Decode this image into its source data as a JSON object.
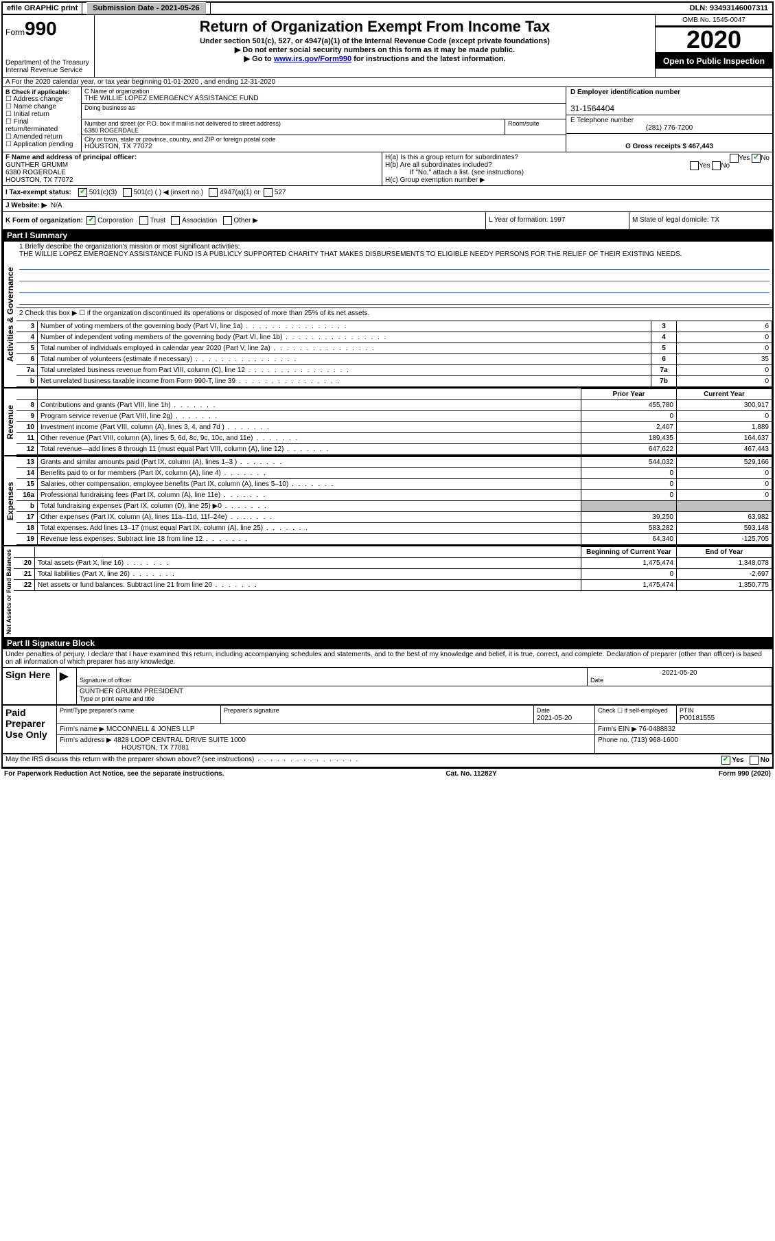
{
  "colors": {
    "black": "#000000",
    "white": "#ffffff",
    "grey": "#c0c0c0",
    "link": "#0000cc",
    "blueline": "#3060c0",
    "green": "#00aa00"
  },
  "top": {
    "efile": "efile GRAPHIC print",
    "sub_label": "Submission Date - 2021-05-26",
    "dln": "DLN: 93493146007311"
  },
  "header": {
    "form": "Form",
    "num": "990",
    "dept": "Department of the Treasury Internal Revenue Service",
    "title": "Return of Organization Exempt From Income Tax",
    "sub1": "Under section 501(c), 527, or 4947(a)(1) of the Internal Revenue Code (except private foundations)",
    "sub2": "▶ Do not enter social security numbers on this form as it may be made public.",
    "sub3_pre": "▶ Go to ",
    "sub3_link": "www.irs.gov/Form990",
    "sub3_post": " for instructions and the latest information.",
    "omb": "OMB No. 1545-0047",
    "year": "2020",
    "open": "Open to Public Inspection"
  },
  "rowA": "A For the 2020 calendar year, or tax year beginning 01-01-2020   , and ending 12-31-2020",
  "sectionB": {
    "b_label": "B Check if applicable:",
    "checks": [
      "☐ Address change",
      "☐ Name change",
      "☐ Initial return",
      "☐ Final return/terminated",
      "☐ Amended return",
      "☐ Application pending"
    ],
    "c_label": "C Name of organization",
    "org_name": "THE WILLIE LOPEZ EMERGENCY ASSISTANCE FUND",
    "dba_label": "Doing business as",
    "addr_label": "Number and street (or P.O. box if mail is not delivered to street address)",
    "room_label": "Room/suite",
    "addr": "6380 ROGERDALE",
    "city_label": "City or town, state or province, country, and ZIP or foreign postal code",
    "city": "HOUSTON, TX  77072",
    "d_label": "D Employer identification number",
    "ein": "31-1564404",
    "e_label": "E Telephone number",
    "phone": "(281) 776-7200",
    "g_label": "G Gross receipts $ 467,443"
  },
  "fg": {
    "f_label": "F  Name and address of principal officer:",
    "f_name": "GUNTHER GRUMM",
    "f_addr1": "6380 ROGERDALE",
    "f_addr2": "HOUSTON, TX  77072",
    "ha": "H(a)  Is this a group return for subordinates?",
    "hb": "H(b)  Are all subordinates included?",
    "hb_note": "If \"No,\" attach a list. (see instructions)",
    "hc": "H(c)  Group exemption number ▶",
    "yes": "Yes",
    "no": "No"
  },
  "tax": {
    "i_label": "I  Tax-exempt status:",
    "opt1": "501(c)(3)",
    "opt2": "501(c) (   ) ◀ (insert no.)",
    "opt3": "4947(a)(1) or",
    "opt4": "527"
  },
  "web": {
    "j_label": "J  Website: ▶",
    "val": "N/A"
  },
  "k": {
    "label": "K Form of organization:",
    "corp": "Corporation",
    "trust": "Trust",
    "assoc": "Association",
    "other": "Other ▶",
    "l": "L Year of formation: 1997",
    "m": "M State of legal domicile: TX"
  },
  "part1": {
    "header": "Part I      Summary",
    "q1": "1  Briefly describe the organization's mission or most significant activities:",
    "q1_text": "THE WILLIE LOPEZ EMERGENCY ASSISTANCE FUND IS A PUBLICLY SUPPORTED CHARITY THAT MAKES DISBURSEMENTS TO ELIGIBLE NEEDY PERSONS FOR THE RELIEF OF THEIR EXISTING NEEDS.",
    "q2": "2  Check this box ▶ ☐  if the organization discontinued its operations or disposed of more than 25% of its net assets.",
    "rows_ag": [
      {
        "n": "3",
        "lbl": "Number of voting members of the governing body (Part VI, line 1a)",
        "box": "3",
        "val": "6"
      },
      {
        "n": "4",
        "lbl": "Number of independent voting members of the governing body (Part VI, line 1b)",
        "box": "4",
        "val": "0"
      },
      {
        "n": "5",
        "lbl": "Total number of individuals employed in calendar year 2020 (Part V, line 2a)",
        "box": "5",
        "val": "0"
      },
      {
        "n": "6",
        "lbl": "Total number of volunteers (estimate if necessary)",
        "box": "6",
        "val": "35"
      },
      {
        "n": "7a",
        "lbl": "Total unrelated business revenue from Part VIII, column (C), line 12",
        "box": "7a",
        "val": "0"
      },
      {
        "n": "b",
        "lbl": "Net unrelated business taxable income from Form 990-T, line 39",
        "box": "7b",
        "val": "0"
      }
    ],
    "vtab_ag": "Activities & Governance",
    "prior": "Prior Year",
    "current": "Current Year",
    "vtab_rev": "Revenue",
    "rows_rev": [
      {
        "n": "8",
        "lbl": "Contributions and grants (Part VIII, line 1h)",
        "py": "455,780",
        "cy": "300,917"
      },
      {
        "n": "9",
        "lbl": "Program service revenue (Part VIII, line 2g)",
        "py": "0",
        "cy": "0"
      },
      {
        "n": "10",
        "lbl": "Investment income (Part VIII, column (A), lines 3, 4, and 7d )",
        "py": "2,407",
        "cy": "1,889"
      },
      {
        "n": "11",
        "lbl": "Other revenue (Part VIII, column (A), lines 5, 6d, 8c, 9c, 10c, and 11e)",
        "py": "189,435",
        "cy": "164,637"
      },
      {
        "n": "12",
        "lbl": "Total revenue—add lines 8 through 11 (must equal Part VIII, column (A), line 12)",
        "py": "647,622",
        "cy": "467,443"
      }
    ],
    "vtab_exp": "Expenses",
    "rows_exp": [
      {
        "n": "13",
        "lbl": "Grants and similar amounts paid (Part IX, column (A), lines 1–3 )",
        "py": "544,032",
        "cy": "529,166"
      },
      {
        "n": "14",
        "lbl": "Benefits paid to or for members (Part IX, column (A), line 4)",
        "py": "0",
        "cy": "0"
      },
      {
        "n": "15",
        "lbl": "Salaries, other compensation, employee benefits (Part IX, column (A), lines 5–10)",
        "py": "0",
        "cy": "0"
      },
      {
        "n": "16a",
        "lbl": "Professional fundraising fees (Part IX, column (A), line 11e)",
        "py": "0",
        "cy": "0"
      },
      {
        "n": "b",
        "lbl": "Total fundraising expenses (Part IX, column (D), line 25) ▶0",
        "py": "",
        "cy": "",
        "grey": true
      },
      {
        "n": "17",
        "lbl": "Other expenses (Part IX, column (A), lines 11a–11d, 11f–24e)",
        "py": "39,250",
        "cy": "63,982"
      },
      {
        "n": "18",
        "lbl": "Total expenses. Add lines 13–17 (must equal Part IX, column (A), line 25)",
        "py": "583,282",
        "cy": "593,148"
      },
      {
        "n": "19",
        "lbl": "Revenue less expenses. Subtract line 18 from line 12",
        "py": "64,340",
        "cy": "-125,705"
      }
    ],
    "vtab_na": "Net Assets or Fund Balances",
    "boy": "Beginning of Current Year",
    "eoy": "End of Year",
    "rows_na": [
      {
        "n": "20",
        "lbl": "Total assets (Part X, line 16)",
        "py": "1,475,474",
        "cy": "1,348,078"
      },
      {
        "n": "21",
        "lbl": "Total liabilities (Part X, line 26)",
        "py": "0",
        "cy": "-2,697"
      },
      {
        "n": "22",
        "lbl": "Net assets or fund balances. Subtract line 21 from line 20",
        "py": "1,475,474",
        "cy": "1,350,775"
      }
    ]
  },
  "part2": {
    "header": "Part II      Signature Block",
    "decl": "Under penalties of perjury, I declare that I have examined this return, including accompanying schedules and statements, and to the best of my knowledge and belief, it is true, correct, and complete. Declaration of preparer (other than officer) is based on all information of which preparer has any knowledge.",
    "sign": "Sign Here",
    "sig_of": "Signature of officer",
    "date": "Date",
    "date_val": "2021-05-20",
    "name": "GUNTHER GRUMM PRESIDENT",
    "type_label": "Type or print name and title",
    "paid": "Paid Preparer Use Only",
    "prep_name": "Print/Type preparer's name",
    "prep_sig": "Preparer's signature",
    "pdate": "Date",
    "pdate_val": "2021-05-20",
    "self": "Check ☐ if self-employed",
    "ptin": "PTIN",
    "ptin_val": "P00181555",
    "firm": "Firm's name    ▶ MCCONNELL & JONES LLP",
    "fein": "Firm's EIN ▶ 76-0488832",
    "faddr": "Firm's address ▶ 4828 LOOP CENTRAL DRIVE SUITE 1000",
    "fcity": "HOUSTON, TX  77081",
    "fphone": "Phone no. (713) 968-1600",
    "may": "May the IRS discuss this return with the preparer shown above? (see instructions)"
  },
  "footer": {
    "pra": "For Paperwork Reduction Act Notice, see the separate instructions.",
    "cat": "Cat. No. 11282Y",
    "form": "Form 990 (2020)"
  }
}
